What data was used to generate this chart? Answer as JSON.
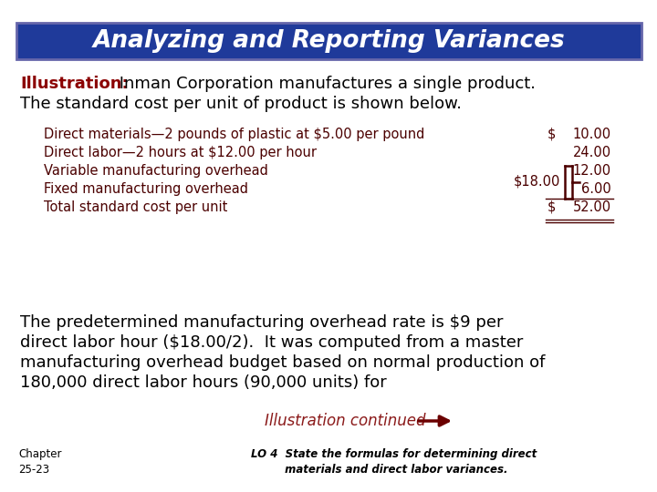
{
  "title": "Analyzing and Reporting Variances",
  "title_bg": "#1F3A9A",
  "title_color": "#FFFFFF",
  "title_border": "#6666AA",
  "illustration_label": "Illustration:",
  "illustration_label_color": "#8B0000",
  "illustration_body": " Inman Corporation manufactures a single product.",
  "illustration_line2": "The standard cost per unit of product is shown below.",
  "table_rows": [
    {
      "label": "Direct materials—2 pounds of plastic at $5.00 per pound",
      "dollar_sign": "$",
      "value": "10.00"
    },
    {
      "label": "Direct labor—2 hours at $12.00 per hour",
      "dollar_sign": "",
      "value": "24.00"
    },
    {
      "label": "Variable manufacturing overhead",
      "dollar_sign": "",
      "value": "12.00"
    },
    {
      "label": "Fixed manufacturing overhead",
      "dollar_sign": "",
      "value": "6.00"
    },
    {
      "label": "Total standard cost per unit",
      "dollar_sign": "$",
      "value": "52.00"
    }
  ],
  "brace_label": "$18.00",
  "body_text_lines": [
    "The predetermined manufacturing overhead rate is $9 per",
    "direct labor hour ($18.00/2).  It was computed from a master",
    "manufacturing overhead budget based on normal production of",
    "180,000 direct labor hours (90,000 units) for"
  ],
  "continued_text": "Illustration continued",
  "continued_color": "#8B1A1A",
  "arrow_color": "#6B0000",
  "lo_line1": "LO 4  State the formulas for determining direct",
  "lo_line2": "         materials and direct labor variances.",
  "chapter_text": "Chapter\n25-23",
  "bg_color": "#FFFFFF",
  "text_color": "#000000",
  "table_color": "#4B0000"
}
